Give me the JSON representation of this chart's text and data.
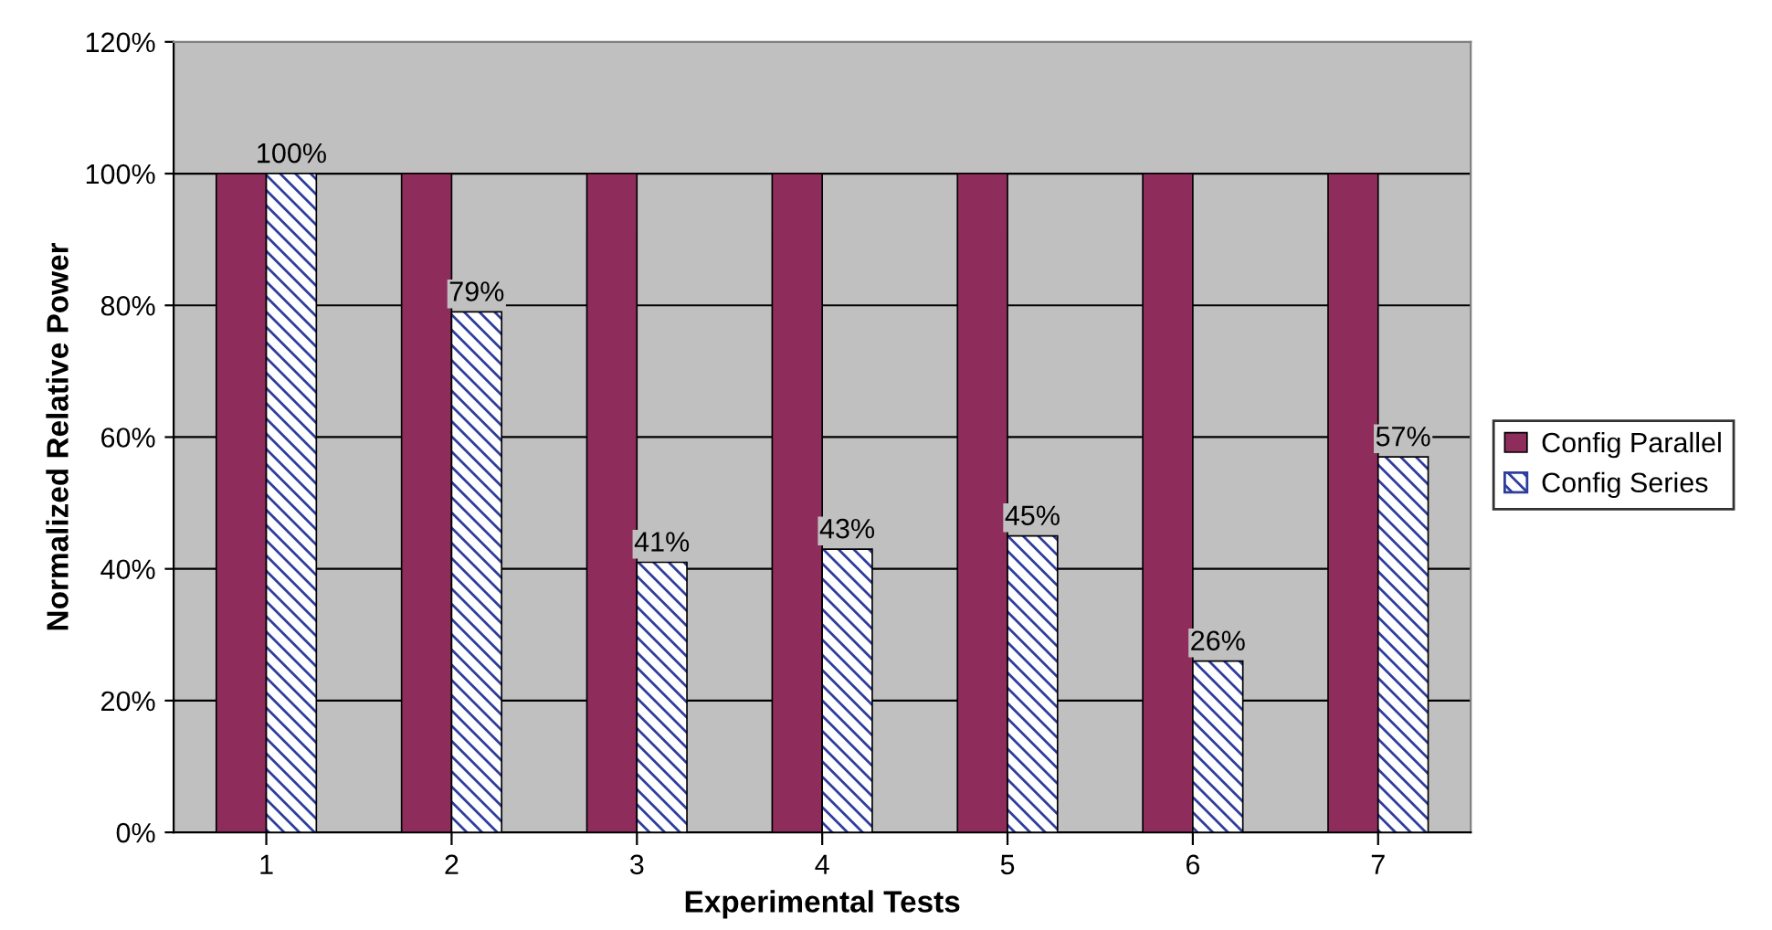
{
  "chart_data": {
    "type": "bar",
    "xlabel": "Experimental Tests",
    "ylabel": "Normalized Relative Power",
    "categories": [
      "1",
      "2",
      "3",
      "4",
      "5",
      "6",
      "7"
    ],
    "series": [
      {
        "name": "Config Parallel",
        "color": "#8e2d5c",
        "values": [
          100,
          100,
          100,
          100,
          100,
          100,
          100
        ]
      },
      {
        "name": "Config Series",
        "color": "#2e3e9e",
        "values": [
          100,
          79,
          41,
          43,
          45,
          26,
          57
        ],
        "value_labels": [
          "100%",
          "79%",
          "41%",
          "43%",
          "45%",
          "26%",
          "57%"
        ]
      }
    ],
    "ylim": [
      0,
      120
    ],
    "yticks": [
      {
        "value": 0,
        "label": "0%"
      },
      {
        "value": 20,
        "label": "20%"
      },
      {
        "value": 40,
        "label": "40%"
      },
      {
        "value": 60,
        "label": "60%"
      },
      {
        "value": 80,
        "label": "80%"
      },
      {
        "value": 100,
        "label": "100%"
      },
      {
        "value": 120,
        "label": "120%"
      }
    ],
    "grid": "y",
    "legend": "right"
  }
}
